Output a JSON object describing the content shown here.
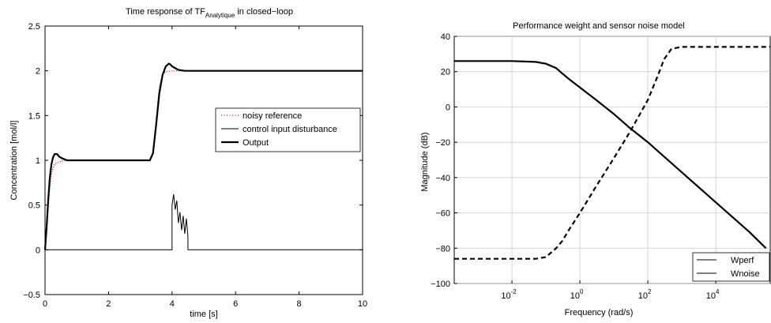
{
  "chart_data": [
    {
      "type": "line",
      "title_main": "Time response of TF",
      "title_sub": "Analytique",
      "title_tail": " in closed−loop",
      "xlabel": "time [s]",
      "ylabel": "Concentration [mol/l]",
      "xlim": [
        0,
        10
      ],
      "ylim": [
        -0.5,
        2.5
      ],
      "x_ticks": [
        "0",
        "2",
        "4",
        "6",
        "8",
        "10"
      ],
      "y_ticks": [
        "−0.5",
        "0",
        "0.5",
        "1",
        "1.5",
        "2",
        "2.5"
      ],
      "grid": false,
      "legend_position": "right",
      "series": [
        {
          "name": "noisy reference",
          "style": "dotted",
          "color": "#ff0000",
          "x": [
            0,
            0.1,
            0.2,
            0.3,
            0.5,
            0.8,
            1.5,
            2.5,
            3.3,
            3.4,
            3.5,
            3.6,
            3.7,
            3.8,
            4.0,
            5.0,
            6.0,
            8.0,
            10.0
          ],
          "y": [
            0,
            0.52,
            0.85,
            0.96,
            0.99,
            1.0,
            1.0,
            1.0,
            1.0,
            1.08,
            1.45,
            1.82,
            1.96,
            1.99,
            2.0,
            2.0,
            2.0,
            2.0,
            2.0
          ]
        },
        {
          "name": "control input disturbance",
          "style": "solid-thin",
          "color": "#000000",
          "x": [
            0,
            4.0,
            4.0,
            4.05,
            4.1,
            4.15,
            4.2,
            4.25,
            4.3,
            4.35,
            4.4,
            4.45,
            4.5,
            4.5,
            10.0
          ],
          "y": [
            0,
            0,
            0.5,
            0.62,
            0.45,
            0.55,
            0.3,
            0.42,
            0.22,
            0.38,
            0.18,
            0.35,
            0.15,
            0,
            0
          ]
        },
        {
          "name": "Output",
          "style": "solid-thick",
          "color": "#000000",
          "x": [
            0,
            0.05,
            0.1,
            0.15,
            0.2,
            0.25,
            0.3,
            0.38,
            0.45,
            0.55,
            0.7,
            0.9,
            1.2,
            2.0,
            3.3,
            3.4,
            3.5,
            3.6,
            3.7,
            3.8,
            3.9,
            3.95,
            4.0,
            4.1,
            4.2,
            4.4,
            4.6,
            5.0,
            6.0,
            8.0,
            10.0
          ],
          "y": [
            0,
            0.25,
            0.55,
            0.8,
            0.95,
            1.03,
            1.07,
            1.07,
            1.04,
            1.02,
            1.0,
            1.0,
            1.0,
            1.0,
            1.0,
            1.08,
            1.4,
            1.75,
            1.95,
            2.05,
            2.08,
            2.07,
            2.05,
            2.03,
            2.01,
            2.0,
            2.0,
            2.0,
            2.0,
            2.0,
            2.0
          ]
        }
      ]
    },
    {
      "type": "line",
      "title": "Performance weight and sensor noise model",
      "xlabel": "Frequency  (rad/s)",
      "ylabel": "Magnitude (dB)",
      "x_scale": "log",
      "xlim": [
        0.0002,
        400000
      ],
      "ylim": [
        -100,
        40
      ],
      "x_ticks": [
        {
          "base": "10",
          "exp": "-2",
          "value": 0.01
        },
        {
          "base": "10",
          "exp": "0",
          "value": 1
        },
        {
          "base": "10",
          "exp": "2",
          "value": 100
        },
        {
          "base": "10",
          "exp": "4",
          "value": 10000
        }
      ],
      "y_ticks": [
        "−100",
        "−80",
        "−60",
        "−40",
        "−20",
        "0",
        "20",
        "40"
      ],
      "grid": true,
      "legend_position": "bottom-right",
      "series": [
        {
          "name": "Wperf",
          "style": "solid",
          "color": "#000000",
          "x": [
            0.0002,
            0.01,
            0.05,
            0.1,
            0.2,
            0.3,
            0.5,
            1,
            3,
            10,
            30,
            100,
            1000,
            10000,
            100000,
            300000
          ],
          "y": [
            26,
            26,
            25.5,
            24.5,
            22,
            19,
            15.5,
            11,
            4,
            -4,
            -12,
            -20,
            -37,
            -54,
            -71,
            -80
          ]
        },
        {
          "name": "Wnoise",
          "style": "dashed",
          "color": "#000000",
          "x": [
            0.0002,
            0.05,
            0.1,
            0.2,
            0.3,
            0.5,
            1,
            3,
            10,
            30,
            100,
            200,
            300,
            500,
            1000,
            100000,
            400000
          ],
          "y": [
            -86,
            -86,
            -85,
            -80,
            -76,
            -69,
            -60,
            -45,
            -29,
            -14,
            4,
            18,
            27,
            33,
            34,
            34,
            34
          ]
        }
      ]
    }
  ]
}
